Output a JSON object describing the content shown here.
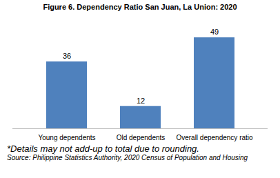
{
  "chart_data": {
    "type": "bar",
    "title": "Figure 6. Dependency Ratio San Juan, La Union: 2020",
    "categories": [
      "Young dependents",
      "Old dependents",
      "Overall dependency ratio"
    ],
    "values": [
      36,
      12,
      49
    ],
    "color": "#4f81bd",
    "ylim": [
      0,
      55
    ],
    "data_labels": true,
    "tick_labels": "x",
    "annotations": [
      "*Details may not add-up to total due to rounding.",
      "Source: Philippine Statistics Authority, 2020 Census of Population and Housing"
    ]
  }
}
